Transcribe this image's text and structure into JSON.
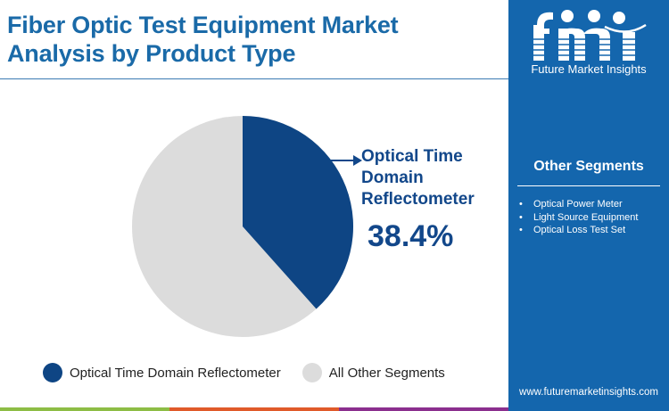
{
  "header": {
    "title_line1": "Fiber Optic Test Equipment Market",
    "title_line2": "Analysis by Product Type"
  },
  "sidebar": {
    "logo_text": "Future Market Insights",
    "segments_title": "Other Segments",
    "segments": [
      "Optical Power Meter",
      "Light Source Equipment",
      "Optical Loss Test Set"
    ],
    "url": "www.futuremarketinsights.com"
  },
  "callout": {
    "label_line1": "Optical Time",
    "label_line2": "Domain",
    "label_line3": "Reflectometer",
    "value": "38.4%"
  },
  "legend": [
    {
      "label": "Optical Time Domain Reflectometer",
      "color": "#0e4584"
    },
    {
      "label": "All Other Segments",
      "color": "#dcdcdc"
    }
  ],
  "colors": {
    "primary": "#0e4584",
    "other": "#dcdcdc",
    "title": "#1a6aa8",
    "sidebar": "#1466ad",
    "bar": [
      "#8dbd45",
      "#e05a2a",
      "#8b2f8e"
    ]
  },
  "chart_data": {
    "type": "pie",
    "title": "Fiber Optic Test Equipment Market Analysis by Product Type",
    "categories": [
      "Optical Time Domain Reflectometer",
      "All Other Segments"
    ],
    "values": [
      38.4,
      61.6
    ],
    "colors": [
      "#0e4584",
      "#dcdcdc"
    ],
    "legend_position": "bottom",
    "annotations": [
      {
        "label": "Optical Time Domain Reflectometer",
        "value": "38.4%"
      }
    ]
  }
}
